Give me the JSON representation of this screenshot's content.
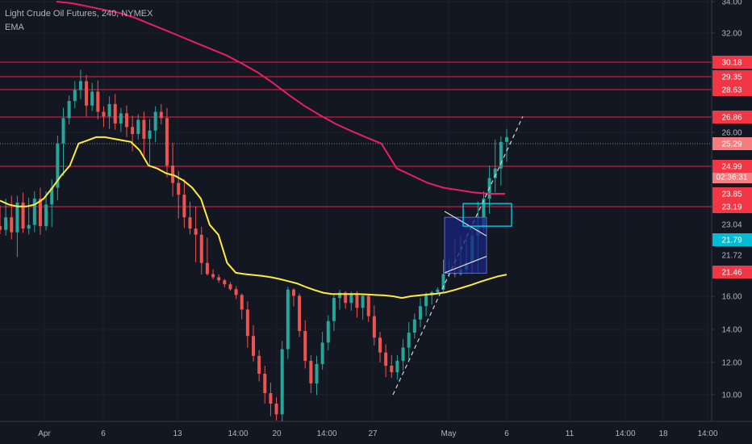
{
  "header": {
    "title": "Light Crude Oil Futures, 240, NYMEX",
    "indicator": "EMA"
  },
  "colors": {
    "background": "#131722",
    "up": "#26a69a",
    "down": "#ef5350",
    "ema_fast": "#ffeb3b",
    "ema_slow": "#e91e63",
    "hline": "#ff1744",
    "axis_text": "#b2b5be",
    "box_blue": "#1a237e",
    "box_cyan": "#00e5ff"
  },
  "chart_data": {
    "type": "candlestick",
    "title": "Light Crude Oil Futures, 240, NYMEX",
    "x_ticks": [
      "Apr",
      "6",
      "13",
      "14:00",
      "20",
      "14:00",
      "27",
      "May",
      "6",
      "11",
      "14:00",
      "18",
      "14:00"
    ],
    "y_ticks": [
      "34.00",
      "32.00",
      "26.00",
      "16.00",
      "14.00",
      "12.00",
      "10.00"
    ],
    "price_labels": [
      {
        "text": "30.18",
        "value": 30.18,
        "kind": "line"
      },
      {
        "text": "29.35",
        "value": 29.35,
        "kind": "line"
      },
      {
        "text": "28.63",
        "value": 28.63,
        "kind": "line"
      },
      {
        "text": "26.86",
        "value": 26.86,
        "kind": "line"
      },
      {
        "text": "25.29",
        "value": 25.29,
        "kind": "last"
      },
      {
        "text": "02:36:31",
        "value": 24.55,
        "kind": "timer"
      },
      {
        "text": "24.99",
        "value": 24.99,
        "kind": "line"
      },
      {
        "text": "23.85",
        "value": 23.85,
        "kind": "line"
      },
      {
        "text": "23.19",
        "value": 23.19,
        "kind": "line"
      },
      {
        "text": "23.04",
        "value": 23.04,
        "kind": "plain"
      },
      {
        "text": "21.79",
        "value": 21.79,
        "kind": "cyan"
      },
      {
        "text": "21.72",
        "value": 21.72,
        "kind": "plain"
      },
      {
        "text": "21.46",
        "value": 21.46,
        "kind": "line"
      }
    ],
    "horizontal_lines": [
      30.18,
      29.35,
      28.63,
      26.86,
      24.99,
      23.19
    ],
    "series": [
      {
        "values": [
          22.6,
          23.1,
          22.4,
          23.4,
          22.7,
          23.0,
          23.6,
          22.9,
          23.3,
          24.1,
          25.3,
          26.8,
          27.9,
          28.6,
          29.1,
          27.6,
          28.5,
          27.2,
          26.9,
          27.7,
          26.5,
          27.1,
          26.3,
          25.9,
          26.7,
          25.6,
          26.1,
          27.2,
          26.8,
          25.0,
          24.3,
          23.8,
          23.1,
          22.7,
          22.2,
          21.6,
          21.0,
          20.3,
          19.6,
          18.7,
          17.6,
          16.3,
          15.2,
          13.6,
          12.4,
          11.3,
          10.1,
          9.5,
          8.9,
          12.8,
          17.5,
          16.1,
          13.9,
          12.1,
          10.7,
          11.9,
          13.2,
          14.5,
          15.9,
          16.8,
          15.6,
          16.5,
          15.3,
          16.1,
          14.8,
          13.5,
          12.6,
          11.8,
          11.4,
          12.1,
          12.9,
          13.8,
          14.6,
          15.4,
          16.2,
          16.9,
          17.5,
          21.0,
          21.3,
          21.0,
          21.5,
          21.6,
          22.1,
          22.8,
          23.6,
          24.5,
          24.9,
          25.4,
          25.7
        ]
      }
    ],
    "ema_fast": {
      "values": [
        23.5,
        23.3,
        23.2,
        23.2,
        23.3,
        23.6,
        24.1,
        24.6,
        25.0,
        25.3,
        25.5,
        25.7,
        25.7,
        25.6,
        25.5,
        25.4,
        25.2,
        25.0,
        24.9,
        24.7,
        24.6,
        24.4,
        24.1,
        23.6,
        23.0,
        22.2,
        21.6,
        21.3,
        21.0,
        20.8,
        20.6,
        20.3,
        19.9,
        19.4,
        18.9,
        18.1,
        17.4,
        16.8,
        16.5,
        16.5,
        16.5,
        16.5,
        16.4,
        16.3,
        16.2,
        16.0,
        15.9,
        16.0,
        16.2,
        16.4,
        16.6,
        16.9,
        17.4,
        18.0,
        18.6,
        19.3,
        19.9,
        20.5,
        20.9
      ]
    },
    "ema_slow": {
      "values": [
        34.0,
        33.9,
        33.7,
        33.5,
        33.3,
        33.0,
        32.6,
        32.2,
        31.8,
        31.4,
        31.0,
        30.6,
        30.1,
        29.6,
        29.0,
        28.3,
        27.6,
        27.0,
        26.5,
        26.1,
        25.7,
        25.3,
        24.9,
        24.6,
        24.3,
        24.1,
        24.0,
        23.9,
        23.85,
        23.85
      ]
    },
    "annotations": [
      {
        "type": "trendline_dashed",
        "from": [
          "Apr 28",
          10.0
        ],
        "to": [
          "May 6",
          26.9
        ]
      },
      {
        "type": "flag_box",
        "color": "blue",
        "price_range": [
          21.2,
          23.1
        ]
      },
      {
        "type": "box",
        "color": "cyan",
        "price_range": [
          22.9,
          23.3
        ]
      }
    ]
  }
}
